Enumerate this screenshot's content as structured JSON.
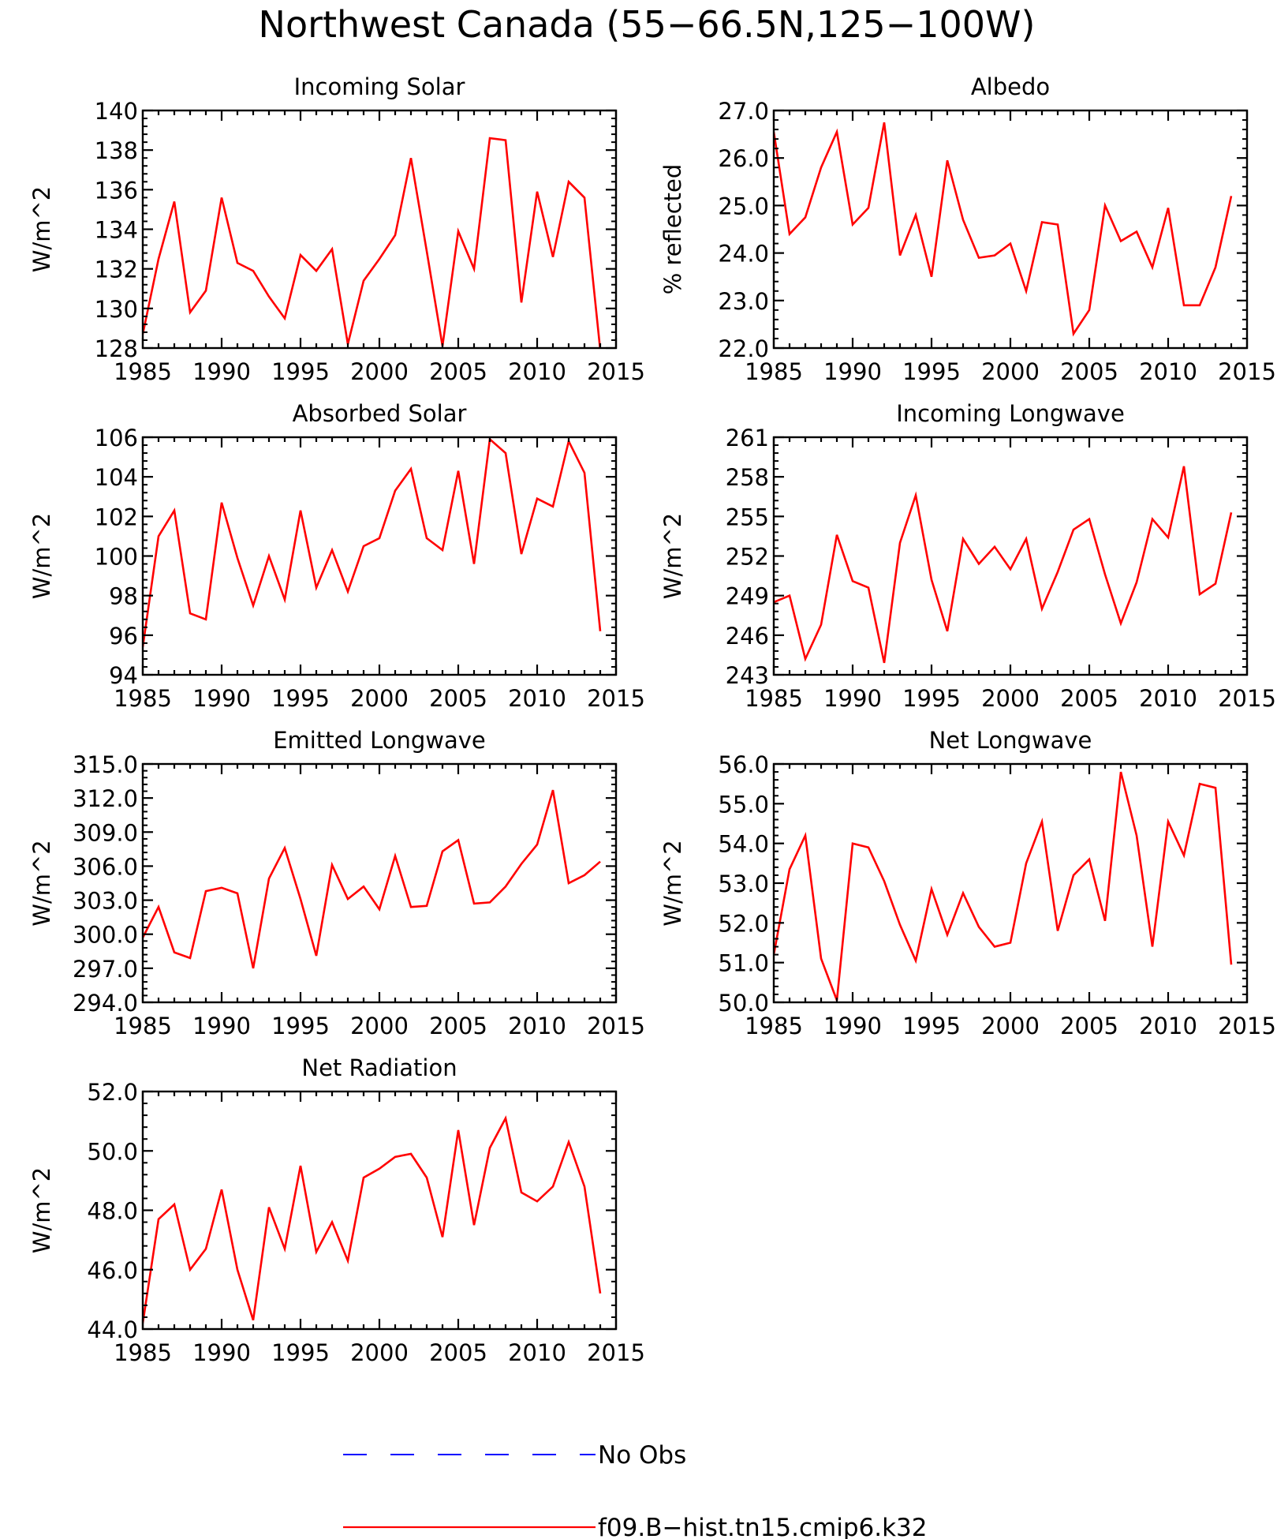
{
  "title": "Northwest Canada (55−66.5N,125−100W)",
  "years": [
    1985,
    1986,
    1987,
    1988,
    1989,
    1990,
    1991,
    1992,
    1993,
    1994,
    1995,
    1996,
    1997,
    1998,
    1999,
    2000,
    2001,
    2002,
    2003,
    2004,
    2005,
    2006,
    2007,
    2008,
    2009,
    2010,
    2011,
    2012,
    2013,
    2014
  ],
  "chart_data": [
    {
      "type": "line",
      "title": "Incoming Solar",
      "ylabel": "W/m^2",
      "xlim": [
        1985,
        2015
      ],
      "ylim": [
        128,
        140
      ],
      "xticks": [
        1985,
        1990,
        1995,
        2000,
        2005,
        2010,
        2015
      ],
      "yticks": [
        128,
        130,
        132,
        134,
        136,
        138,
        140
      ],
      "ytick_labels": [
        "128",
        "130",
        "132",
        "134",
        "136",
        "138",
        "140"
      ],
      "series": [
        {
          "name": "f09.B−hist.tn15.cmip6.k32",
          "color": "#ff0000",
          "values": [
            128.7,
            132.5,
            135.4,
            129.8,
            130.9,
            135.6,
            132.3,
            131.9,
            130.6,
            129.5,
            132.7,
            131.9,
            133.0,
            128.2,
            131.4,
            132.5,
            133.7,
            137.6,
            132.9,
            128.1,
            133.9,
            132.0,
            138.6,
            138.5,
            130.3,
            135.9,
            132.6,
            136.4,
            135.6,
            127.9
          ]
        }
      ]
    },
    {
      "type": "line",
      "title": "Albedo",
      "ylabel": "% reflected",
      "xlim": [
        1985,
        2015
      ],
      "ylim": [
        22.0,
        27.0
      ],
      "xticks": [
        1985,
        1990,
        1995,
        2000,
        2005,
        2010,
        2015
      ],
      "yticks": [
        22,
        23,
        24,
        25,
        26,
        27
      ],
      "ytick_labels": [
        "22.0",
        "23.0",
        "24.0",
        "25.0",
        "26.0",
        "27.0"
      ],
      "series": [
        {
          "name": "f09.B−hist.tn15.cmip6.k32",
          "color": "#ff0000",
          "values": [
            26.55,
            24.4,
            24.75,
            25.8,
            26.55,
            24.6,
            24.95,
            26.75,
            23.95,
            24.8,
            23.5,
            25.95,
            24.7,
            23.9,
            23.95,
            24.2,
            23.2,
            24.65,
            24.6,
            22.3,
            22.8,
            25.0,
            24.25,
            24.45,
            23.7,
            24.95,
            22.9,
            22.9,
            23.7,
            25.2
          ]
        }
      ]
    },
    {
      "type": "line",
      "title": "Absorbed Solar",
      "ylabel": "W/m^2",
      "xlim": [
        1985,
        2015
      ],
      "ylim": [
        94,
        106
      ],
      "xticks": [
        1985,
        1990,
        1995,
        2000,
        2005,
        2010,
        2015
      ],
      "yticks": [
        94,
        96,
        98,
        100,
        102,
        104,
        106
      ],
      "ytick_labels": [
        "94",
        "96",
        "98",
        "100",
        "102",
        "104",
        "106"
      ],
      "series": [
        {
          "name": "f09.B−hist.tn15.cmip6.k32",
          "color": "#ff0000",
          "values": [
            95.4,
            101.0,
            102.3,
            97.1,
            96.8,
            102.7,
            99.9,
            97.5,
            100.0,
            97.8,
            102.3,
            98.4,
            100.3,
            98.2,
            100.5,
            100.9,
            103.3,
            104.4,
            100.9,
            100.3,
            104.3,
            99.6,
            105.9,
            105.2,
            100.1,
            102.9,
            102.5,
            105.8,
            104.2,
            96.2
          ]
        }
      ]
    },
    {
      "type": "line",
      "title": "Incoming Longwave",
      "ylabel": "W/m^2",
      "xlim": [
        1985,
        2015
      ],
      "ylim": [
        243,
        261
      ],
      "xticks": [
        1985,
        1990,
        1995,
        2000,
        2005,
        2010,
        2015
      ],
      "yticks": [
        243,
        246,
        249,
        252,
        255,
        258,
        261
      ],
      "ytick_labels": [
        "243",
        "246",
        "249",
        "252",
        "255",
        "258",
        "261"
      ],
      "series": [
        {
          "name": "f09.B−hist.tn15.cmip6.k32",
          "color": "#ff0000",
          "values": [
            248.5,
            249.0,
            244.2,
            246.8,
            253.6,
            250.1,
            249.6,
            243.9,
            253.0,
            256.6,
            250.2,
            246.3,
            253.3,
            251.4,
            252.7,
            251.0,
            253.3,
            248.0,
            250.8,
            254.0,
            254.8,
            250.6,
            246.9,
            250.0,
            254.8,
            253.4,
            258.8,
            249.1,
            249.9,
            255.3
          ]
        }
      ]
    },
    {
      "type": "line",
      "title": "Emitted Longwave",
      "ylabel": "W/m^2",
      "xlim": [
        1985,
        2015
      ],
      "ylim": [
        294.0,
        315.0
      ],
      "xticks": [
        1985,
        1990,
        1995,
        2000,
        2005,
        2010,
        2015
      ],
      "yticks": [
        294,
        297,
        300,
        303,
        306,
        309,
        312,
        315
      ],
      "ytick_labels": [
        "294.0",
        "297.0",
        "300.0",
        "303.0",
        "306.0",
        "309.0",
        "312.0",
        "315.0"
      ],
      "series": [
        {
          "name": "f09.B−hist.tn15.cmip6.k32",
          "color": "#ff0000",
          "values": [
            299.7,
            302.4,
            298.4,
            297.9,
            303.8,
            304.1,
            303.6,
            297.0,
            304.9,
            307.6,
            303.1,
            298.1,
            306.1,
            303.1,
            304.2,
            302.2,
            306.9,
            302.4,
            302.5,
            307.3,
            308.3,
            302.7,
            302.8,
            304.2,
            306.2,
            307.9,
            312.7,
            304.5,
            305.2,
            306.4
          ]
        }
      ]
    },
    {
      "type": "line",
      "title": "Net Longwave",
      "ylabel": "W/m^2",
      "xlim": [
        1985,
        2015
      ],
      "ylim": [
        50.0,
        56.0
      ],
      "xticks": [
        1985,
        1990,
        1995,
        2000,
        2005,
        2010,
        2015
      ],
      "yticks": [
        50,
        51,
        52,
        53,
        54,
        55,
        56
      ],
      "ytick_labels": [
        "50.0",
        "51.0",
        "52.0",
        "53.0",
        "54.0",
        "55.0",
        "56.0"
      ],
      "series": [
        {
          "name": "f09.B−hist.tn15.cmip6.k32",
          "color": "#ff0000",
          "values": [
            51.2,
            53.35,
            54.2,
            51.1,
            50.05,
            54.0,
            53.9,
            53.05,
            51.95,
            51.05,
            52.85,
            51.7,
            52.75,
            51.9,
            51.4,
            51.5,
            53.5,
            54.55,
            51.8,
            53.2,
            53.6,
            52.05,
            55.8,
            54.2,
            51.4,
            54.55,
            53.7,
            55.5,
            55.4,
            50.95
          ]
        }
      ]
    },
    {
      "type": "line",
      "title": "Net Radiation",
      "ylabel": "W/m^2",
      "xlim": [
        1985,
        2015
      ],
      "ylim": [
        44.0,
        52.0
      ],
      "xticks": [
        1985,
        1990,
        1995,
        2000,
        2005,
        2010,
        2015
      ],
      "yticks": [
        44,
        46,
        48,
        50,
        52
      ],
      "ytick_labels": [
        "44.0",
        "46.0",
        "48.0",
        "50.0",
        "52.0"
      ],
      "series": [
        {
          "name": "f09.B−hist.tn15.cmip6.k32",
          "color": "#ff0000",
          "values": [
            44.2,
            47.7,
            48.2,
            46.0,
            46.7,
            48.7,
            46.0,
            44.3,
            48.1,
            46.7,
            49.5,
            46.6,
            47.6,
            46.3,
            49.1,
            49.4,
            49.8,
            49.9,
            49.1,
            47.1,
            50.7,
            47.5,
            50.1,
            51.1,
            48.6,
            48.3,
            48.8,
            50.3,
            48.8,
            45.2
          ]
        }
      ]
    }
  ],
  "legend": [
    {
      "label": "No Obs",
      "color": "#0000ff",
      "style": "dashed"
    },
    {
      "label": "f09.B−hist.tn15.cmip6.k32",
      "color": "#ff0000",
      "style": "solid"
    }
  ]
}
